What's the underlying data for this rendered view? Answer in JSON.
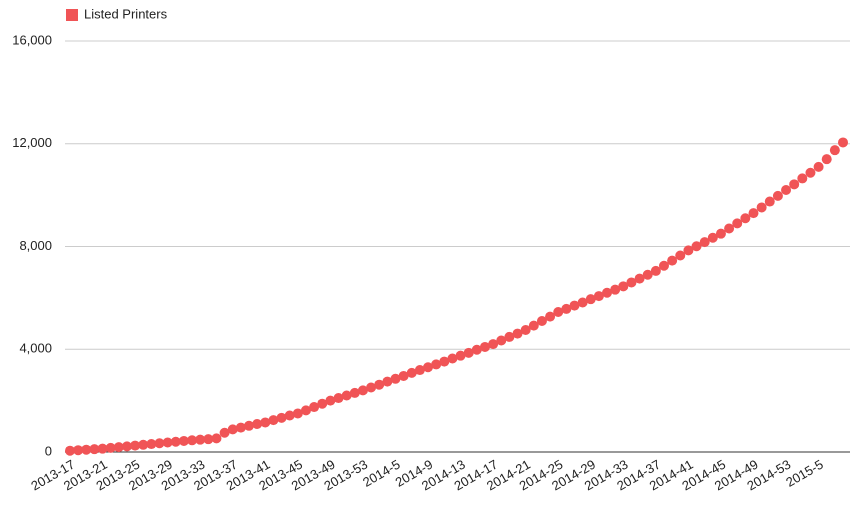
{
  "chart_data": {
    "type": "line",
    "categories": [
      "2013-17",
      null,
      null,
      null,
      "2013-21",
      null,
      null,
      null,
      "2013-25",
      null,
      null,
      null,
      "2013-29",
      null,
      null,
      null,
      "2013-33",
      null,
      null,
      null,
      "2013-37",
      null,
      null,
      null,
      "2013-41",
      null,
      null,
      null,
      "2013-45",
      null,
      null,
      null,
      "2013-49",
      null,
      null,
      null,
      "2013-53",
      null,
      null,
      null,
      "2014-5",
      null,
      null,
      null,
      "2014-9",
      null,
      null,
      null,
      "2014-13",
      null,
      null,
      null,
      "2014-17",
      null,
      null,
      null,
      "2014-21",
      null,
      null,
      null,
      "2014-25",
      null,
      null,
      null,
      "2014-29",
      null,
      null,
      null,
      "2014-33",
      null,
      null,
      null,
      "2014-37",
      null,
      null,
      null,
      "2014-41",
      null,
      null,
      null,
      "2014-45",
      null,
      null,
      null,
      "2014-49",
      null,
      null,
      null,
      "2014-53",
      null,
      null,
      null,
      "2015-5",
      null,
      null,
      null
    ],
    "series": [
      {
        "name": "Listed Printers",
        "color": "#f05456",
        "values": [
          50,
          70,
          90,
          110,
          130,
          160,
          190,
          220,
          250,
          280,
          310,
          340,
          370,
          400,
          430,
          455,
          480,
          500,
          530,
          750,
          880,
          950,
          1020,
          1090,
          1150,
          1240,
          1330,
          1420,
          1500,
          1620,
          1750,
          1880,
          2000,
          2100,
          2200,
          2300,
          2400,
          2510,
          2620,
          2740,
          2850,
          2960,
          3080,
          3190,
          3300,
          3410,
          3520,
          3640,
          3750,
          3860,
          3980,
          4090,
          4200,
          4340,
          4480,
          4610,
          4750,
          4920,
          5100,
          5270,
          5450,
          5570,
          5700,
          5820,
          5950,
          6070,
          6200,
          6320,
          6450,
          6600,
          6750,
          6900,
          7050,
          7250,
          7450,
          7650,
          7850,
          8010,
          8170,
          8340,
          8500,
          8700,
          8900,
          9100,
          9300,
          9520,
          9750,
          9970,
          10200,
          10420,
          10650,
          10870,
          11100,
          11400,
          11750,
          12050
        ]
      }
    ],
    "ylim": [
      0,
      16000
    ],
    "yticks": [
      0,
      {
        "value": 4000,
        "label": "4,000"
      },
      {
        "value": 8000,
        "label": "8,000"
      },
      {
        "value": 12000,
        "label": "12,000"
      },
      {
        "value": 16000,
        "label": "16,000"
      }
    ],
    "grid": true,
    "legend": "top-left"
  }
}
